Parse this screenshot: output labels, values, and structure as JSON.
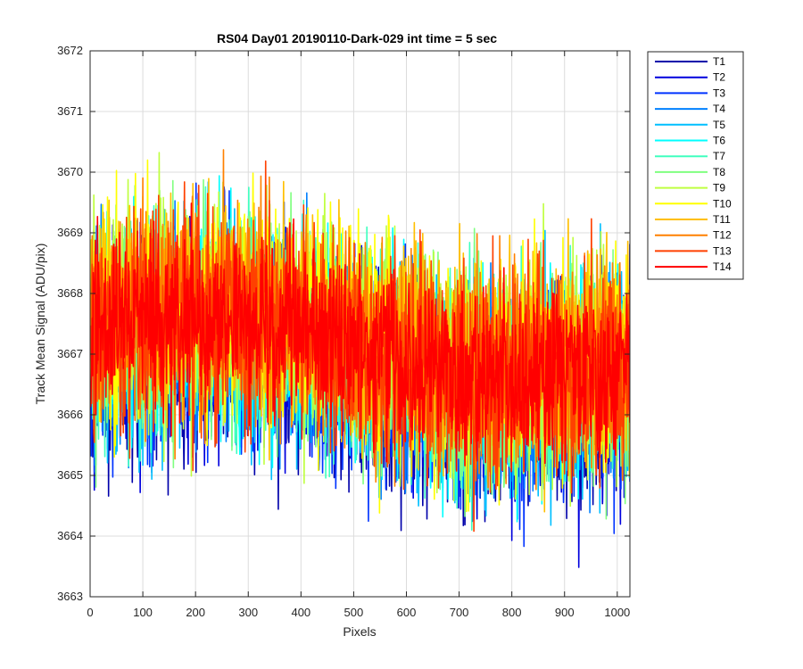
{
  "chart_data": {
    "type": "line",
    "title": "RS04 Day01 20190110-Dark-029 int time = 5 sec",
    "xlabel": "Pixels",
    "ylabel": "Track Mean Signal (ADU/pix)",
    "xlim": [
      0,
      1024
    ],
    "ylim": [
      3663,
      3672
    ],
    "xticks": [
      0,
      100,
      200,
      300,
      400,
      500,
      600,
      700,
      800,
      900,
      1000
    ],
    "yticks": [
      3663,
      3664,
      3665,
      3666,
      3667,
      3668,
      3669,
      3670,
      3671,
      3672
    ],
    "grid": true,
    "legend_position": "outside-top-right",
    "x_points": 1024,
    "series": [
      {
        "name": "T1",
        "color": "#0000AA",
        "mean": 3666.6,
        "noise_amplitude": 1.6
      },
      {
        "name": "T2",
        "color": "#0000DD",
        "mean": 3666.7,
        "noise_amplitude": 1.6
      },
      {
        "name": "T3",
        "color": "#0033FF",
        "mean": 3666.8,
        "noise_amplitude": 1.6
      },
      {
        "name": "T4",
        "color": "#0080FF",
        "mean": 3666.9,
        "noise_amplitude": 1.6
      },
      {
        "name": "T5",
        "color": "#00BFFF",
        "mean": 3666.9,
        "noise_amplitude": 1.6
      },
      {
        "name": "T6",
        "color": "#00FFFF",
        "mean": 3667.0,
        "noise_amplitude": 1.6
      },
      {
        "name": "T7",
        "color": "#40FFBF",
        "mean": 3667.0,
        "noise_amplitude": 1.6
      },
      {
        "name": "T8",
        "color": "#80FF80",
        "mean": 3667.1,
        "noise_amplitude": 1.6
      },
      {
        "name": "T9",
        "color": "#BFFF40",
        "mean": 3667.2,
        "noise_amplitude": 1.6
      },
      {
        "name": "T10",
        "color": "#FFFF00",
        "mean": 3667.3,
        "noise_amplitude": 1.6
      },
      {
        "name": "T11",
        "color": "#FFBF00",
        "mean": 3667.3,
        "noise_amplitude": 1.6
      },
      {
        "name": "T12",
        "color": "#FF8000",
        "mean": 3667.2,
        "noise_amplitude": 1.6
      },
      {
        "name": "T13",
        "color": "#FF4000",
        "mean": 3667.1,
        "noise_amplitude": 1.6
      },
      {
        "name": "T14",
        "color": "#FF0000",
        "mean": 3667.1,
        "noise_amplitude": 1.3
      }
    ]
  }
}
